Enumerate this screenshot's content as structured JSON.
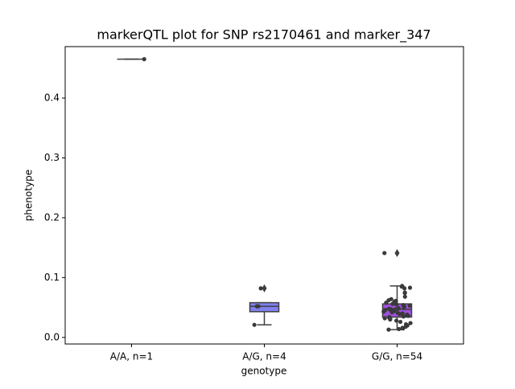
{
  "chart_data": {
    "type": "box",
    "title": "markerQTL plot for SNP rs2170461 and marker_347",
    "x_label": "genotype",
    "y_label": "phenotype",
    "categories": [
      "A/A, n=1",
      "A/G, n=4",
      "G/G, n=54"
    ],
    "colors": [
      "#5fd35f",
      "#8080f0",
      "#a050e0"
    ],
    "boxes": [
      {
        "min": 0.465,
        "q1": 0.465,
        "median": 0.465,
        "q3": 0.465,
        "max": 0.465,
        "outliers": []
      },
      {
        "min": 0.021,
        "q1": 0.043,
        "median": 0.052,
        "q3": 0.058,
        "max": 0.058,
        "outliers": [
          0.082
        ]
      },
      {
        "min": 0.013,
        "q1": 0.034,
        "median": 0.047,
        "q3": 0.056,
        "max": 0.086,
        "outliers": [
          0.141
        ]
      }
    ],
    "points": [
      [
        0.465
      ],
      [
        0.082,
        0.052,
        0.052,
        0.021
      ],
      [
        0.141,
        0.086,
        0.085,
        0.083,
        0.082,
        0.075,
        0.074,
        0.068,
        0.064,
        0.062,
        0.061,
        0.06,
        0.058,
        0.057,
        0.056,
        0.055,
        0.054,
        0.053,
        0.052,
        0.051,
        0.05,
        0.049,
        0.048,
        0.048,
        0.047,
        0.047,
        0.046,
        0.045,
        0.044,
        0.043,
        0.042,
        0.041,
        0.04,
        0.039,
        0.038,
        0.037,
        0.036,
        0.035,
        0.034,
        0.034,
        0.033,
        0.032,
        0.031,
        0.03,
        0.028,
        0.026,
        0.024,
        0.022,
        0.02,
        0.018,
        0.016,
        0.015,
        0.014,
        0.013
      ]
    ],
    "point_color": "#3a3a3a",
    "ylim": [
      -0.011,
      0.486
    ],
    "yticks": [
      {
        "value": 0,
        "label": "0.0"
      },
      0.1,
      0.2,
      0.3,
      0.4
    ]
  }
}
